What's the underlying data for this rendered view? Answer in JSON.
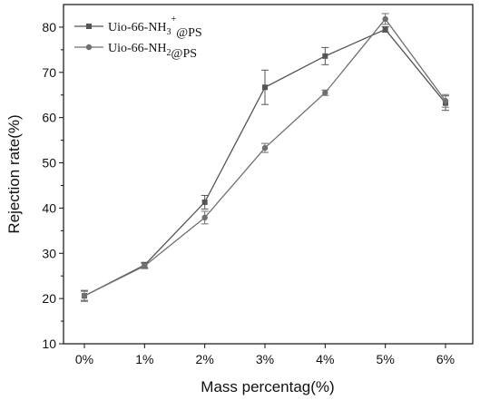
{
  "chart_data": {
    "type": "line",
    "title": "",
    "xlabel": "Mass percentag(%)",
    "ylabel": "Rejection rate(%)",
    "categories": [
      "0%",
      "1%",
      "2%",
      "3%",
      "4%",
      "5%",
      "6%"
    ],
    "ylim": [
      10,
      85
    ],
    "yticks": [
      10,
      20,
      30,
      40,
      50,
      60,
      70,
      80
    ],
    "grid": false,
    "legend_position": "top-left",
    "series": [
      {
        "name": "Uio-66-NH3+@PS",
        "legend_base": "Uio-66-NH",
        "legend_sub": "3",
        "legend_sup": "+",
        "legend_tail": "@PS",
        "marker": "square",
        "color": "#555555",
        "values": [
          20.6,
          27.4,
          41.3,
          66.7,
          73.6,
          79.5,
          63.2
        ],
        "errors": [
          1.2,
          0.6,
          1.5,
          3.8,
          1.9,
          0.6,
          1.6
        ]
      },
      {
        "name": "Uio-66-NH2@PS",
        "legend_base": "Uio-66-NH",
        "legend_sub": "2",
        "legend_sup": "",
        "legend_tail": "@PS",
        "marker": "circle",
        "color": "#707070",
        "values": [
          20.6,
          27.2,
          37.9,
          53.3,
          65.5,
          81.8,
          63.7
        ],
        "errors": [
          1.0,
          0.6,
          1.4,
          1.0,
          0.6,
          1.2,
          1.4
        ]
      }
    ]
  }
}
